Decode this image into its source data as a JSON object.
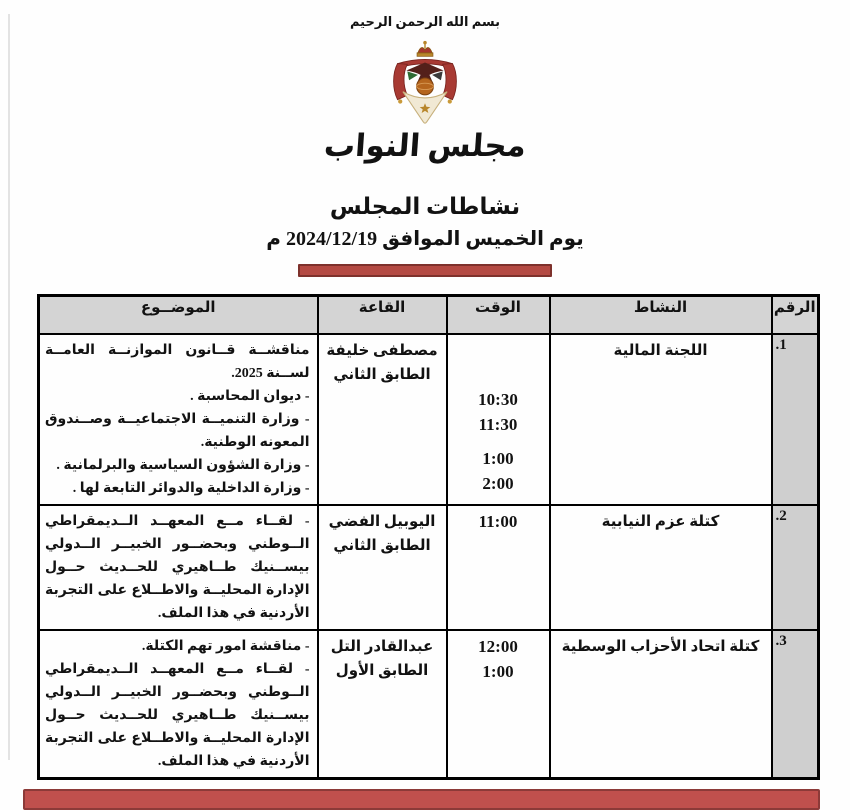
{
  "header": {
    "bismillah": "بسم الله الرحمن الرحيم",
    "org_name": "مجلس النواب",
    "title": "نشاطات المجلس",
    "date_line": "يوم الخميس الموافق 2024/12/19 م"
  },
  "colors": {
    "accent_bar_fill": "#b44a43",
    "accent_bar_border": "#7e312c",
    "bottom_bar_fill": "#c0504d",
    "bottom_bar_border": "#8c3a38",
    "table_header_bg": "#d4d4d4",
    "number_column_bg": "#cfcfcf"
  },
  "table": {
    "headers": {
      "num": "الرقم",
      "activity": "النشاط",
      "time": "الوقت",
      "hall": "القاعة",
      "subject": "الموضــوع"
    },
    "rows": [
      {
        "num": ".1",
        "activity": "اللجنة المالية",
        "times": [
          "10:30",
          "11:30",
          "",
          "1:00",
          "2:00"
        ],
        "hall_lines": [
          "مصطفى خليفة",
          "الطابق الثاني"
        ],
        "subject_lines": [
          "مناقشــة قــانون الموازنــة العامــة لســنة 2025.",
          "- ديوان المحاسبة .",
          "- وزارة التنميــة الاجتماعيــة وصــندوق المعونه الوطنية.",
          "- وزارة الشؤون السياسية والبرلمانية .",
          "- وزارة الداخلية والدوائر التابعة لها ."
        ]
      },
      {
        "num": ".2",
        "activity": "كتلة عزم النيابية",
        "times": [
          "11:00"
        ],
        "hall_lines": [
          "اليوبيل الفضي",
          "الطابق الثاني"
        ],
        "subject_lines": [
          "- لقــاء مــع المعهــد الــديمقراطي الــوطني وبحضــور الخبيــر الــدولي بيســنيك طــاهيري للحــديث حــول الإدارة المحليــة والاطــلاع على التجربة الأردنية في هذا الملف."
        ]
      },
      {
        "num": ".3",
        "activity": "كتلة اتحاد الأحزاب الوسطية",
        "times": [
          "12:00",
          "1:00"
        ],
        "hall_lines": [
          "عبدالقادر التل",
          "الطابق الأول"
        ],
        "subject_lines": [
          "- مناقشة امور تهم الكتلة.",
          "- لقــاء مــع المعهــد الــديمقراطي الــوطني وبحضــور الخبيــر الــدولي بيســنيك طــاهيري للحــديث حــول الإدارة المحليــة والاطــلاع على التجربة الأردنية في هذا الملف."
        ]
      }
    ]
  }
}
